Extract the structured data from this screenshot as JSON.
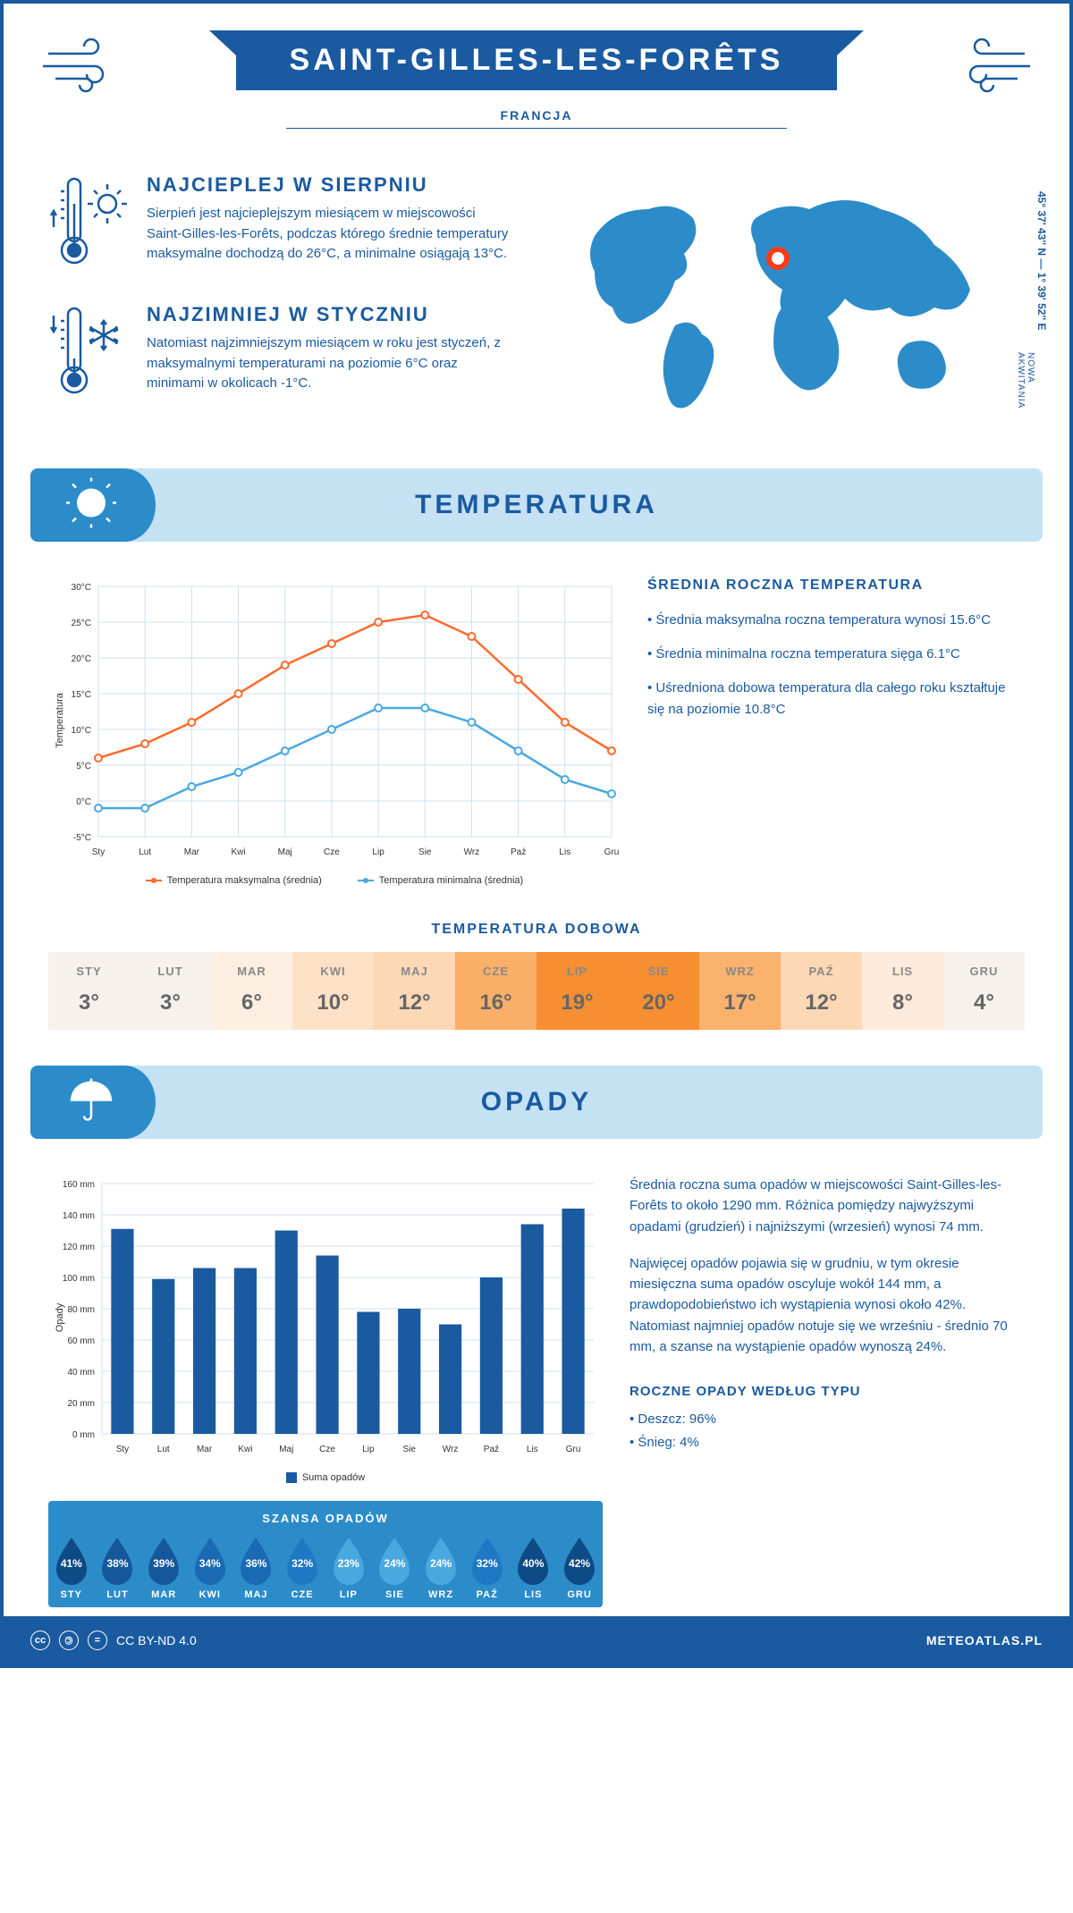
{
  "header": {
    "title": "SAINT-GILLES-LES-FORÊTS",
    "country": "FRANCJA"
  },
  "location": {
    "coords": "45° 37' 43'' N — 1° 39' 52'' E",
    "region": "NOWA AKWITANIA"
  },
  "intro": {
    "warm": {
      "title": "NAJCIEPLEJ W SIERPNIU",
      "text": "Sierpień jest najcieplejszym miesiącem w miejscowości Saint-Gilles-les-Forêts, podczas którego średnie temperatury maksymalne dochodzą do 26°C, a minimalne osiągają 13°C."
    },
    "cold": {
      "title": "NAJZIMNIEJ W STYCZNIU",
      "text": "Natomiast najzimniejszym miesiącem w roku jest styczeń, z maksymalnymi temperaturami na poziomie 6°C oraz minimami w okolicach -1°C."
    }
  },
  "banners": {
    "temp": "TEMPERATURA",
    "opady": "OPADY"
  },
  "temp_chart": {
    "months": [
      "Sty",
      "Lut",
      "Mar",
      "Kwi",
      "Maj",
      "Cze",
      "Lip",
      "Sie",
      "Wrz",
      "Paź",
      "Lis",
      "Gru"
    ],
    "max_series": [
      6,
      8,
      11,
      15,
      19,
      22,
      25,
      26,
      23,
      17,
      11,
      7
    ],
    "min_series": [
      -1,
      -1,
      2,
      4,
      7,
      10,
      13,
      13,
      11,
      7,
      3,
      1
    ],
    "max_color": "#ff6a2b",
    "min_color": "#4aa8e0",
    "grid_color": "#d0e0ee",
    "ylim": [
      -5,
      30
    ],
    "ytick_step": 5,
    "ylabel": "Temperatura",
    "legend_max": "Temperatura maksymalna (średnia)",
    "legend_min": "Temperatura minimalna (średnia)"
  },
  "temp_side": {
    "title": "ŚREDNIA ROCZNA TEMPERATURA",
    "p1": "• Średnia maksymalna roczna temperatura wynosi 15.6°C",
    "p2": "• Średnia minimalna roczna temperatura sięga 6.1°C",
    "p3": "• Uśredniona dobowa temperatura dla całego roku kształtuje się na poziomie 10.8°C"
  },
  "dobowa": {
    "title": "TEMPERATURA DOBOWA",
    "months": [
      "STY",
      "LUT",
      "MAR",
      "KWI",
      "MAJ",
      "CZE",
      "LIP",
      "SIE",
      "WRZ",
      "PAŹ",
      "LIS",
      "GRU"
    ],
    "values": [
      "3°",
      "3°",
      "6°",
      "10°",
      "12°",
      "16°",
      "19°",
      "20°",
      "17°",
      "12°",
      "8°",
      "4°"
    ],
    "colors": [
      "#f7f1ec",
      "#f7f1ec",
      "#fdeee2",
      "#fde1c7",
      "#fcd8b5",
      "#fbaf68",
      "#f78e32",
      "#f78e32",
      "#fbb26d",
      "#fcd8b5",
      "#fdeadb",
      "#f7f1ec"
    ]
  },
  "opady_chart": {
    "months": [
      "Sty",
      "Lut",
      "Mar",
      "Kwi",
      "Maj",
      "Cze",
      "Lip",
      "Sie",
      "Wrz",
      "Paź",
      "Lis",
      "Gru"
    ],
    "values": [
      131,
      99,
      106,
      106,
      130,
      114,
      78,
      80,
      70,
      100,
      134,
      144
    ],
    "bar_color": "#1a5aa0",
    "grid_color": "#d0e0ee",
    "ymax": 160,
    "ytick_step": 20,
    "ylabel": "Opady",
    "legend": "Suma opadów"
  },
  "opady_text": {
    "p1": "Średnia roczna suma opadów w miejscowości Saint-Gilles-les-Forêts to około 1290 mm. Różnica pomiędzy najwyższymi opadami (grudzień) i najniższymi (wrzesień) wynosi 74 mm.",
    "p2": "Najwięcej opadów pojawia się w grudniu, w tym okresie miesięczna suma opadów oscyluje wokół 144 mm, a prawdopodobieństwo ich wystąpienia wynosi około 42%. Natomiast najmniej opadów notuje się we wrześniu - średnio 70 mm, a szanse na wystąpienie opadów wynoszą 24%."
  },
  "chance": {
    "title": "SZANSA OPADÓW",
    "months": [
      "STY",
      "LUT",
      "MAR",
      "KWI",
      "MAJ",
      "CZE",
      "LIP",
      "SIE",
      "WRZ",
      "PAŹ",
      "LIS",
      "GRU"
    ],
    "pct": [
      "41%",
      "38%",
      "39%",
      "34%",
      "36%",
      "32%",
      "23%",
      "24%",
      "24%",
      "32%",
      "40%",
      "42%"
    ],
    "colors": [
      "#0e4a86",
      "#14589b",
      "#14589b",
      "#1a6ab3",
      "#1a6ab3",
      "#1f78c4",
      "#4aa8e0",
      "#4aa8e0",
      "#4aa8e0",
      "#1f78c4",
      "#0e4a86",
      "#0e4a86"
    ]
  },
  "typ": {
    "title": "ROCZNE OPADY WEDŁUG TYPU",
    "rain": "• Deszcz: 96%",
    "snow": "• Śnieg: 4%"
  },
  "footer": {
    "license": "CC BY-ND 4.0",
    "site": "METEOATLAS.PL"
  }
}
